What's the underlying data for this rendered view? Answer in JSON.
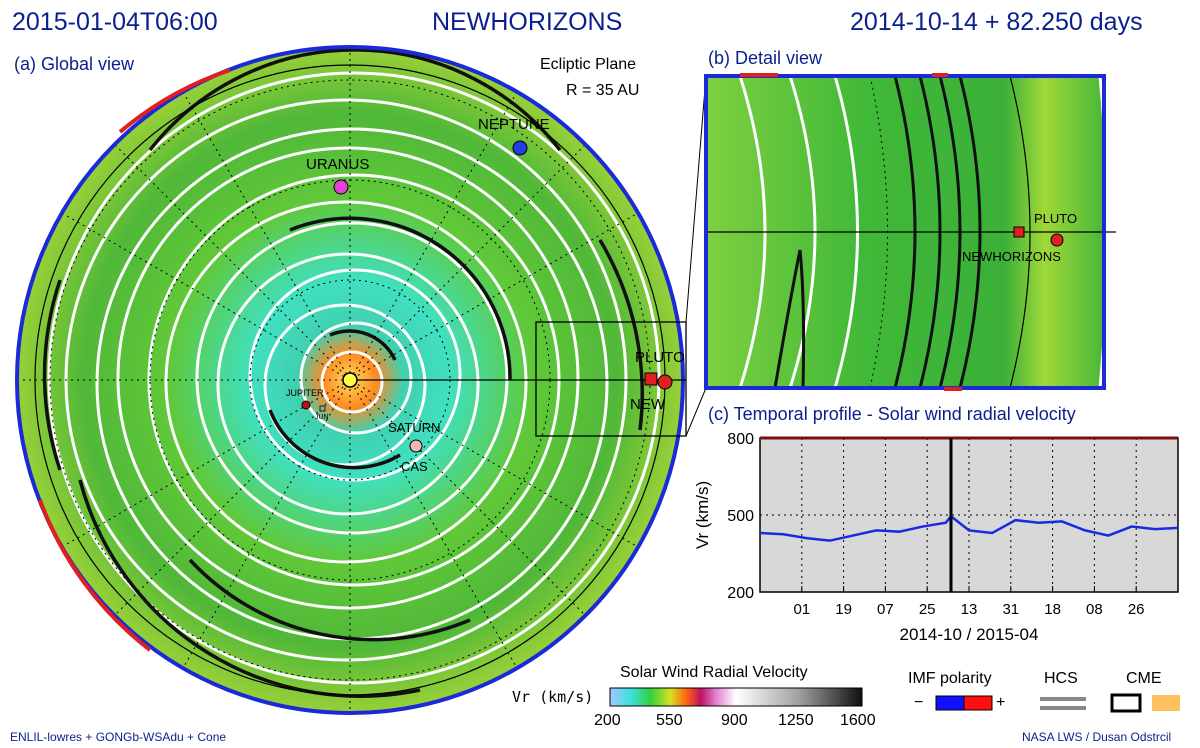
{
  "header": {
    "datetime": "2015-01-04T06:00",
    "mission": "NEWHORIZONS",
    "elapsed": "2014-10-14 + 82.250 days"
  },
  "panel_a": {
    "title": "(a) Global view",
    "plane": "Ecliptic Plane",
    "radius": "R = 35 AU",
    "bodies": [
      {
        "name": "NEPTUNE",
        "color": "#1f3fe0"
      },
      {
        "name": "URANUS",
        "color": "#e63fd6"
      },
      {
        "name": "PLUTO",
        "color": "#e02020"
      },
      {
        "name": "NEW",
        "color": "#e02020"
      },
      {
        "name": "JUPITER",
        "color": "#c01010"
      },
      {
        "name": "SATURN",
        "color": "#f0b8b0"
      },
      {
        "name": "CAS",
        "color": "#f0b8b0"
      },
      {
        "name": "JUN",
        "color": "#a0a0a0"
      }
    ]
  },
  "panel_b": {
    "title": "(b) Detail view",
    "pluto_label": "PLUTO",
    "craft_label": "NEWHORIZONS"
  },
  "panel_c": {
    "title": "(c) Temporal profile - Solar wind radial velocity",
    "ylabel": "Vr (km/s)",
    "xlabel": "2014-10 / 2015-04"
  },
  "chart_data": {
    "type": "line",
    "ylim": [
      200,
      800
    ],
    "yticks": [
      200,
      500,
      800
    ],
    "xticks": [
      "01",
      "19",
      "07",
      "25",
      "13",
      "31",
      "18",
      "08",
      "26"
    ],
    "x_days": [
      0,
      10,
      20,
      30,
      40,
      50,
      60,
      70,
      80,
      82.25,
      90,
      100,
      110,
      120,
      130,
      140,
      150,
      160,
      170,
      180
    ],
    "series": [
      {
        "values": [
          430,
          425,
          410,
          400,
          420,
          440,
          435,
          455,
          470,
          495,
          440,
          430,
          480,
          470,
          475,
          440,
          420,
          455,
          445,
          450
        ]
      }
    ],
    "current_day": 82.25,
    "grid": true
  },
  "colorbar": {
    "title": "Solar Wind Radial Velocity",
    "unit": "Vr (km/s)",
    "ticks": [
      "200",
      "550",
      "900",
      "1250",
      "1600"
    ]
  },
  "legend": {
    "imf": "IMF polarity",
    "minus": "−",
    "plus": "+",
    "hcs": "HCS",
    "cme": "CME",
    "colors": {
      "neg": "#1010ff",
      "pos": "#ff1010",
      "hcs": "#888888",
      "cme": "#ffc060"
    }
  },
  "footer": {
    "left": "ENLIL-lowres + GONGb-WSAdu + Cone",
    "right": "NASA LWS / Dusan Odstrcil"
  }
}
